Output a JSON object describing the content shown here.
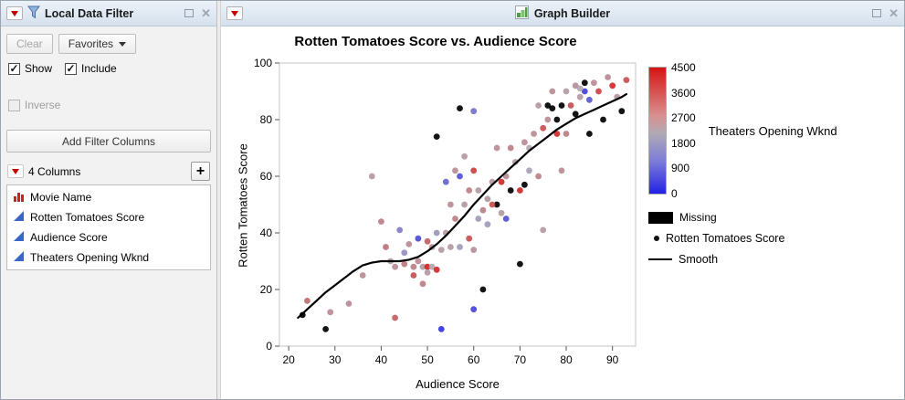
{
  "left_panel": {
    "title": "Local Data Filter",
    "clear_label": "Clear",
    "favorites_label": "Favorites",
    "show_label": "Show",
    "include_label": "Include",
    "inverse_label": "Inverse",
    "add_filter_label": "Add Filter Columns",
    "columns_header": "4 Columns",
    "columns": [
      {
        "label": "Movie Name",
        "icon": "nominal-red-bars-icon"
      },
      {
        "label": "Rotten Tomatoes Score",
        "icon": "continuous-blue-triangle-icon"
      },
      {
        "label": "Audience Score",
        "icon": "continuous-blue-triangle-icon"
      },
      {
        "label": "Theaters Opening Wknd",
        "icon": "continuous-blue-triangle-icon"
      }
    ]
  },
  "right_panel": {
    "title": "Graph Builder"
  },
  "chart_data": {
    "type": "scatter",
    "title": "Rotten Tomatoes Score vs. Audience Score",
    "xlabel": "Audience Score",
    "ylabel": "Rotten Tomatoes Score",
    "xlim": [
      18,
      95
    ],
    "ylim": [
      0,
      100
    ],
    "x_ticks": [
      20,
      30,
      40,
      50,
      60,
      70,
      80,
      90
    ],
    "y_ticks": [
      0,
      20,
      40,
      60,
      80,
      100
    ],
    "grid": false,
    "color_legend": {
      "title": "Theaters Opening Wknd",
      "min": 0,
      "max": 4500,
      "ticks": [
        4500,
        3600,
        2700,
        1800,
        900,
        0
      ],
      "low_color": "#2222e6",
      "mid_color": "#b0aab4",
      "high_color": "#d61414",
      "missing_label": "Missing",
      "missing_color": "#000000"
    },
    "legend_items": [
      {
        "label": "Rotten Tomatoes Score",
        "marker": "dot"
      },
      {
        "label": "Smooth",
        "marker": "line"
      }
    ],
    "series_note": "points are [audience_score, rotten_tomatoes_score, theaters_opening_wknd_or_null_if_missing]",
    "points": [
      [
        23,
        11,
        null
      ],
      [
        28,
        6,
        null
      ],
      [
        52,
        74,
        null
      ],
      [
        57,
        84,
        null
      ],
      [
        62,
        20,
        null
      ],
      [
        65,
        50,
        null
      ],
      [
        68,
        55,
        null
      ],
      [
        70,
        29,
        null
      ],
      [
        71,
        57,
        null
      ],
      [
        76,
        85,
        null
      ],
      [
        77,
        84,
        null
      ],
      [
        78,
        80,
        null
      ],
      [
        79,
        85,
        null
      ],
      [
        82,
        82,
        null
      ],
      [
        84,
        93,
        null
      ],
      [
        85,
        75,
        null
      ],
      [
        88,
        80,
        null
      ],
      [
        92,
        83,
        null
      ],
      [
        53,
        6,
        300
      ],
      [
        60,
        13,
        600
      ],
      [
        57,
        60,
        800
      ],
      [
        48,
        38,
        700
      ],
      [
        67,
        45,
        800
      ],
      [
        84,
        90,
        500
      ],
      [
        85,
        87,
        900
      ],
      [
        54,
        58,
        1100
      ],
      [
        60,
        83,
        1300
      ],
      [
        44,
        41,
        1500
      ],
      [
        45,
        33,
        1800
      ],
      [
        63,
        43,
        2000
      ],
      [
        52,
        40,
        1900
      ],
      [
        61,
        45,
        2000
      ],
      [
        57,
        35,
        2000
      ],
      [
        72,
        62,
        2100
      ],
      [
        24,
        16,
        3200
      ],
      [
        29,
        12,
        2700
      ],
      [
        33,
        15,
        2700
      ],
      [
        36,
        25,
        2700
      ],
      [
        38,
        60,
        2500
      ],
      [
        40,
        44,
        2900
      ],
      [
        41,
        35,
        3100
      ],
      [
        42,
        30,
        2500
      ],
      [
        43,
        28,
        2700
      ],
      [
        43,
        10,
        3400
      ],
      [
        45,
        29,
        3000
      ],
      [
        46,
        36,
        2700
      ],
      [
        47,
        28,
        2900
      ],
      [
        47,
        25,
        3600
      ],
      [
        48,
        30,
        2700
      ],
      [
        49,
        28,
        2500
      ],
      [
        49,
        22,
        2900
      ],
      [
        50,
        37,
        3400
      ],
      [
        50,
        28,
        4300
      ],
      [
        50,
        26,
        2500
      ],
      [
        51,
        35,
        2700
      ],
      [
        51,
        28,
        2300
      ],
      [
        52,
        27,
        4200
      ],
      [
        53,
        34,
        2500
      ],
      [
        54,
        40,
        2500
      ],
      [
        55,
        50,
        2700
      ],
      [
        55,
        35,
        2500
      ],
      [
        56,
        62,
        2700
      ],
      [
        56,
        45,
        2900
      ],
      [
        58,
        67,
        2500
      ],
      [
        58,
        50,
        2500
      ],
      [
        59,
        55,
        2900
      ],
      [
        59,
        38,
        3600
      ],
      [
        60,
        62,
        3800
      ],
      [
        60,
        34,
        2700
      ],
      [
        61,
        55,
        2500
      ],
      [
        62,
        48,
        2900
      ],
      [
        63,
        52,
        2500
      ],
      [
        64,
        50,
        3600
      ],
      [
        64,
        58,
        2500
      ],
      [
        65,
        70,
        2700
      ],
      [
        66,
        58,
        4200
      ],
      [
        66,
        47,
        2500
      ],
      [
        67,
        60,
        2700
      ],
      [
        68,
        70,
        2900
      ],
      [
        69,
        65,
        2500
      ],
      [
        70,
        55,
        4200
      ],
      [
        71,
        72,
        2700
      ],
      [
        72,
        70,
        2300
      ],
      [
        73,
        75,
        2700
      ],
      [
        74,
        85,
        2500
      ],
      [
        74,
        60,
        2900
      ],
      [
        75,
        77,
        3600
      ],
      [
        75,
        41,
        2500
      ],
      [
        76,
        80,
        2700
      ],
      [
        77,
        90,
        2700
      ],
      [
        78,
        75,
        4200
      ],
      [
        79,
        62,
        2700
      ],
      [
        80,
        90,
        2500
      ],
      [
        80,
        75,
        2900
      ],
      [
        81,
        85,
        3600
      ],
      [
        82,
        92,
        2700
      ],
      [
        83,
        88,
        2500
      ],
      [
        83,
        91,
        2300
      ],
      [
        86,
        93,
        2700
      ],
      [
        87,
        90,
        3800
      ],
      [
        89,
        95,
        2700
      ],
      [
        90,
        92,
        4200
      ],
      [
        91,
        88,
        2500
      ],
      [
        93,
        94,
        3600
      ]
    ],
    "smooth": [
      [
        22,
        10
      ],
      [
        24,
        13
      ],
      [
        26,
        16
      ],
      [
        28,
        19
      ],
      [
        30,
        21.5
      ],
      [
        32,
        24
      ],
      [
        34,
        26.5
      ],
      [
        36,
        28.5
      ],
      [
        38,
        29.5
      ],
      [
        40,
        30
      ],
      [
        42,
        30
      ],
      [
        44,
        30
      ],
      [
        46,
        30.5
      ],
      [
        48,
        31.5
      ],
      [
        50,
        33.5
      ],
      [
        52,
        36
      ],
      [
        54,
        39
      ],
      [
        56,
        42.5
      ],
      [
        58,
        46
      ],
      [
        60,
        50
      ],
      [
        62,
        53.5
      ],
      [
        64,
        57
      ],
      [
        66,
        60
      ],
      [
        68,
        63
      ],
      [
        70,
        66
      ],
      [
        72,
        69
      ],
      [
        74,
        71.5
      ],
      [
        76,
        74
      ],
      [
        78,
        76.5
      ],
      [
        80,
        78.5
      ],
      [
        82,
        80.5
      ],
      [
        84,
        82
      ],
      [
        86,
        83.5
      ],
      [
        88,
        85
      ],
      [
        90,
        86.5
      ],
      [
        92,
        88
      ],
      [
        93,
        89
      ]
    ]
  }
}
